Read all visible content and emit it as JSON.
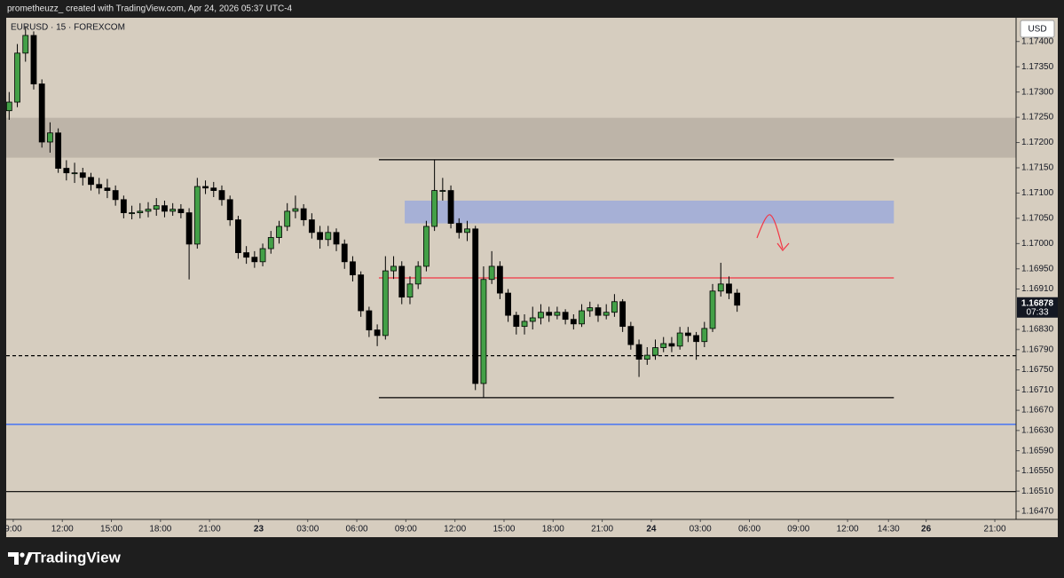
{
  "header": {
    "text": "prometheuzz_ created with TradingView.com, Apr 24, 2026 05:37 UTC-4"
  },
  "footer": {
    "brand": "TradingView"
  },
  "chart_data": {
    "type": "candlestick",
    "symbol": "EURUSD · 15 · FOREXCOM",
    "currency": "USD",
    "up_color": "#43a047",
    "down_color": "#000000",
    "background": "#d6cdbf",
    "grid": false,
    "ylim": [
      1.16454,
      1.17447
    ],
    "xlim": [
      -0.43,
      61.3
    ],
    "yticks": [
      {
        "value": 1.174,
        "label": "1.17400"
      },
      {
        "value": 1.1735,
        "label": "1.17350"
      },
      {
        "value": 1.173,
        "label": "1.17300"
      },
      {
        "value": 1.1725,
        "label": "1.17250"
      },
      {
        "value": 1.172,
        "label": "1.17200"
      },
      {
        "value": 1.1715,
        "label": "1.17150"
      },
      {
        "value": 1.171,
        "label": "1.17100"
      },
      {
        "value": 1.1705,
        "label": "1.17050"
      },
      {
        "value": 1.17,
        "label": "1.17000"
      },
      {
        "value": 1.1695,
        "label": "1.16950"
      },
      {
        "value": 1.1691,
        "label": "1.16910"
      },
      {
        "value": 1.1683,
        "label": "1.16830"
      },
      {
        "value": 1.1679,
        "label": "1.16790"
      },
      {
        "value": 1.1675,
        "label": "1.16750"
      },
      {
        "value": 1.1671,
        "label": "1.16710"
      },
      {
        "value": 1.1667,
        "label": "1.16670"
      },
      {
        "value": 1.1663,
        "label": "1.16630"
      },
      {
        "value": 1.1659,
        "label": "1.16590"
      },
      {
        "value": 1.1655,
        "label": "1.16550"
      },
      {
        "value": 1.1651,
        "label": "1.16510"
      },
      {
        "value": 1.1647,
        "label": "1.16470"
      }
    ],
    "xticks": [
      {
        "value": 0,
        "label": "9:00"
      },
      {
        "value": 3,
        "label": "12:00"
      },
      {
        "value": 6,
        "label": "15:00"
      },
      {
        "value": 9,
        "label": "18:00"
      },
      {
        "value": 12,
        "label": "21:00"
      },
      {
        "value": 15,
        "label": "23"
      },
      {
        "value": 18,
        "label": "03:00"
      },
      {
        "value": 21,
        "label": "06:00"
      },
      {
        "value": 24,
        "label": "09:00"
      },
      {
        "value": 27,
        "label": "12:00"
      },
      {
        "value": 30,
        "label": "15:00"
      },
      {
        "value": 33,
        "label": "18:00"
      },
      {
        "value": 36,
        "label": "21:00"
      },
      {
        "value": 39,
        "label": "24"
      },
      {
        "value": 42,
        "label": "03:00"
      },
      {
        "value": 45,
        "label": "06:00"
      },
      {
        "value": 48,
        "label": "09:00"
      },
      {
        "value": 51,
        "label": "12:00"
      },
      {
        "value": 53.5,
        "label": "14:30"
      },
      {
        "value": 55.8,
        "label": "26"
      },
      {
        "value": 60,
        "label": "21:00"
      }
    ],
    "x": [
      -0.25,
      0.25,
      0.75,
      1.25,
      1.75,
      2.25,
      2.75,
      3.25,
      3.75,
      4.25,
      4.75,
      5.25,
      5.75,
      6.25,
      6.75,
      7.25,
      7.75,
      8.25,
      8.75,
      9.25,
      9.75,
      10.25,
      10.75,
      11.25,
      11.75,
      12.25,
      12.75,
      13.25,
      13.75,
      14.25,
      14.75,
      15.25,
      15.75,
      16.25,
      16.75,
      17.25,
      17.75,
      18.25,
      18.75,
      19.25,
      19.75,
      20.25,
      20.75,
      21.25,
      21.75,
      22.25,
      22.75,
      23.25,
      23.75,
      24.25,
      24.75,
      25.25,
      25.75,
      26.25,
      26.75,
      27.25,
      27.75,
      28.25,
      28.75,
      29.25,
      29.75,
      30.25,
      30.75,
      31.25,
      31.75,
      32.25,
      32.75,
      33.25,
      33.75,
      34.25,
      34.75,
      35.25,
      35.75,
      36.25,
      36.75,
      37.25,
      37.75,
      38.25,
      38.75,
      39.25,
      39.75,
      40.25,
      40.75,
      41.25,
      41.75,
      42.25,
      42.75,
      43.25,
      43.75,
      44.25
    ],
    "open": [
      1.17263,
      1.1728,
      1.17377,
      1.17412,
      1.17316,
      1.17201,
      1.17219,
      1.17149,
      1.1714,
      1.1714,
      1.17131,
      1.17117,
      1.1711,
      1.17105,
      1.17087,
      1.17061,
      1.17061,
      1.17064,
      1.17068,
      1.17075,
      1.17064,
      1.17068,
      1.17061,
      1.16999,
      1.17113,
      1.1711,
      1.17105,
      1.17087,
      1.17047,
      1.16982,
      1.16973,
      1.16964,
      1.1699,
      1.17012,
      1.17034,
      1.17064,
      1.17069,
      1.17047,
      1.17022,
      1.17008,
      1.17022,
      1.16999,
      1.16964,
      1.16938,
      1.16867,
      1.16829,
      1.16818,
      1.16946,
      1.16955,
      1.16894,
      1.1692,
      1.16955,
      1.17034,
      1.17105,
      1.17105,
      1.1704,
      1.17022,
      1.17029,
      1.16723,
      1.16929,
      1.16955,
      1.16902,
      1.16858,
      1.16836,
      1.16846,
      1.16853,
      1.16864,
      1.16858,
      1.16864,
      1.1685,
      1.16841,
      1.16867,
      1.16873,
      1.16858,
      1.16864,
      1.16885,
      1.16836,
      1.168,
      1.16771,
      1.16779,
      1.16794,
      1.16802,
      1.16797,
      1.16823,
      1.16818,
      1.16806,
      1.16832,
      1.16906,
      1.1692,
      1.16902
    ],
    "high": [
      1.173,
      1.17395,
      1.1743,
      1.1742,
      1.17325,
      1.1724,
      1.17228,
      1.17165,
      1.1716,
      1.1715,
      1.1714,
      1.1713,
      1.17128,
      1.17115,
      1.17095,
      1.17075,
      1.1708,
      1.17082,
      1.1709,
      1.17085,
      1.1708,
      1.17078,
      1.1707,
      1.1713,
      1.17125,
      1.17122,
      1.17115,
      1.17095,
      1.17055,
      1.16995,
      1.16985,
      1.17,
      1.17025,
      1.17045,
      1.1708,
      1.17095,
      1.17078,
      1.1706,
      1.17035,
      1.17035,
      1.1703,
      1.17008,
      1.16975,
      1.16945,
      1.16875,
      1.1684,
      1.16975,
      1.16975,
      1.16965,
      1.16935,
      1.16965,
      1.17045,
      1.17166,
      1.1713,
      1.17115,
      1.1705,
      1.17045,
      1.17035,
      1.16955,
      1.16985,
      1.16965,
      1.1691,
      1.16865,
      1.1686,
      1.16875,
      1.1688,
      1.16875,
      1.16875,
      1.1687,
      1.1686,
      1.1688,
      1.16885,
      1.1688,
      1.1688,
      1.169,
      1.1689,
      1.16845,
      1.1681,
      1.16795,
      1.1681,
      1.16815,
      1.16815,
      1.16835,
      1.16835,
      1.16825,
      1.16845,
      1.1692,
      1.16962,
      1.16935,
      1.1691
    ],
    "low": [
      1.17245,
      1.1727,
      1.1736,
      1.17305,
      1.1719,
      1.1718,
      1.1714,
      1.17125,
      1.1712,
      1.17115,
      1.17105,
      1.17098,
      1.1709,
      1.17075,
      1.1705,
      1.17048,
      1.1705,
      1.17052,
      1.17055,
      1.17052,
      1.17055,
      1.1705,
      1.16929,
      1.1699,
      1.17098,
      1.17092,
      1.17075,
      1.17035,
      1.1697,
      1.1696,
      1.16952,
      1.16955,
      1.1698,
      1.17,
      1.17025,
      1.1705,
      1.17035,
      1.1701,
      1.1699,
      1.16995,
      1.16985,
      1.1695,
      1.16925,
      1.16855,
      1.16815,
      1.16797,
      1.1681,
      1.1693,
      1.1688,
      1.1688,
      1.1691,
      1.16945,
      1.17025,
      1.17085,
      1.1703,
      1.1701,
      1.17005,
      1.1671,
      1.16695,
      1.1692,
      1.1689,
      1.16845,
      1.1682,
      1.1682,
      1.1683,
      1.1684,
      1.16845,
      1.1685,
      1.1684,
      1.1683,
      1.16835,
      1.16855,
      1.16845,
      1.1685,
      1.16855,
      1.16825,
      1.1679,
      1.16736,
      1.1676,
      1.1677,
      1.16785,
      1.16785,
      1.1679,
      1.16805,
      1.1677,
      1.16795,
      1.16825,
      1.16895,
      1.1689,
      1.16865
    ],
    "close": [
      1.1728,
      1.17377,
      1.17412,
      1.17316,
      1.17201,
      1.17219,
      1.17149,
      1.1714,
      1.1714,
      1.17131,
      1.17117,
      1.1711,
      1.17105,
      1.17087,
      1.17061,
      1.17061,
      1.17064,
      1.17068,
      1.17075,
      1.17064,
      1.17068,
      1.17061,
      1.16999,
      1.17113,
      1.1711,
      1.17105,
      1.17087,
      1.17047,
      1.16982,
      1.16973,
      1.16964,
      1.1699,
      1.17012,
      1.17034,
      1.17064,
      1.17069,
      1.17047,
      1.17022,
      1.17008,
      1.17022,
      1.16999,
      1.16964,
      1.16938,
      1.16867,
      1.16829,
      1.16818,
      1.16946,
      1.16955,
      1.16894,
      1.1692,
      1.16955,
      1.17034,
      1.17105,
      1.17105,
      1.1704,
      1.17022,
      1.17029,
      1.16723,
      1.16929,
      1.16955,
      1.16902,
      1.16858,
      1.16836,
      1.16846,
      1.16853,
      1.16864,
      1.16858,
      1.16864,
      1.1685,
      1.16841,
      1.16867,
      1.16873,
      1.16858,
      1.16864,
      1.16885,
      1.16836,
      1.168,
      1.16771,
      1.16779,
      1.16794,
      1.16802,
      1.16797,
      1.16823,
      1.16818,
      1.16806,
      1.16832,
      1.16906,
      1.1692,
      1.16902,
      1.16878
    ],
    "countdown": "07:33",
    "zones": [
      {
        "from": 1.1717,
        "to": 1.17249,
        "color": "#bdb4a8"
      },
      {
        "from": 1.1704,
        "to": 1.17085,
        "start": 23.93,
        "end": 53.83,
        "color": "#a6b0d6"
      }
    ],
    "levels": [
      {
        "value": 1.17166,
        "start": 22.35,
        "end": 53.83,
        "color": "#000000",
        "dashed": false
      },
      {
        "value": 1.16932,
        "start": 22.35,
        "end": 53.83,
        "color": "#f23645",
        "dashed": false
      },
      {
        "value": 1.16695,
        "start": 22.35,
        "end": 53.83,
        "color": "#000000",
        "dashed": false
      },
      {
        "value": 1.16778,
        "color": "#000000",
        "dashed": true
      },
      {
        "value": 1.16642,
        "color": "#2962ff",
        "dashed": false
      },
      {
        "value": 1.16509,
        "color": "#000000",
        "dashed": false
      }
    ]
  }
}
